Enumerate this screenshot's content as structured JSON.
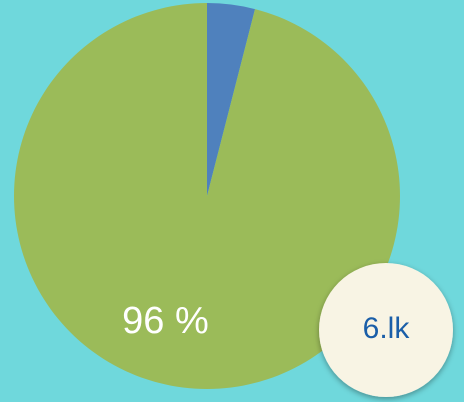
{
  "chart_data": {
    "type": "pie",
    "values": [
      4,
      96
    ],
    "value_labels": [
      null,
      "96 %"
    ],
    "colors": [
      "#4f81bd",
      "#9bbb59"
    ],
    "annotation": "6.lk"
  }
}
